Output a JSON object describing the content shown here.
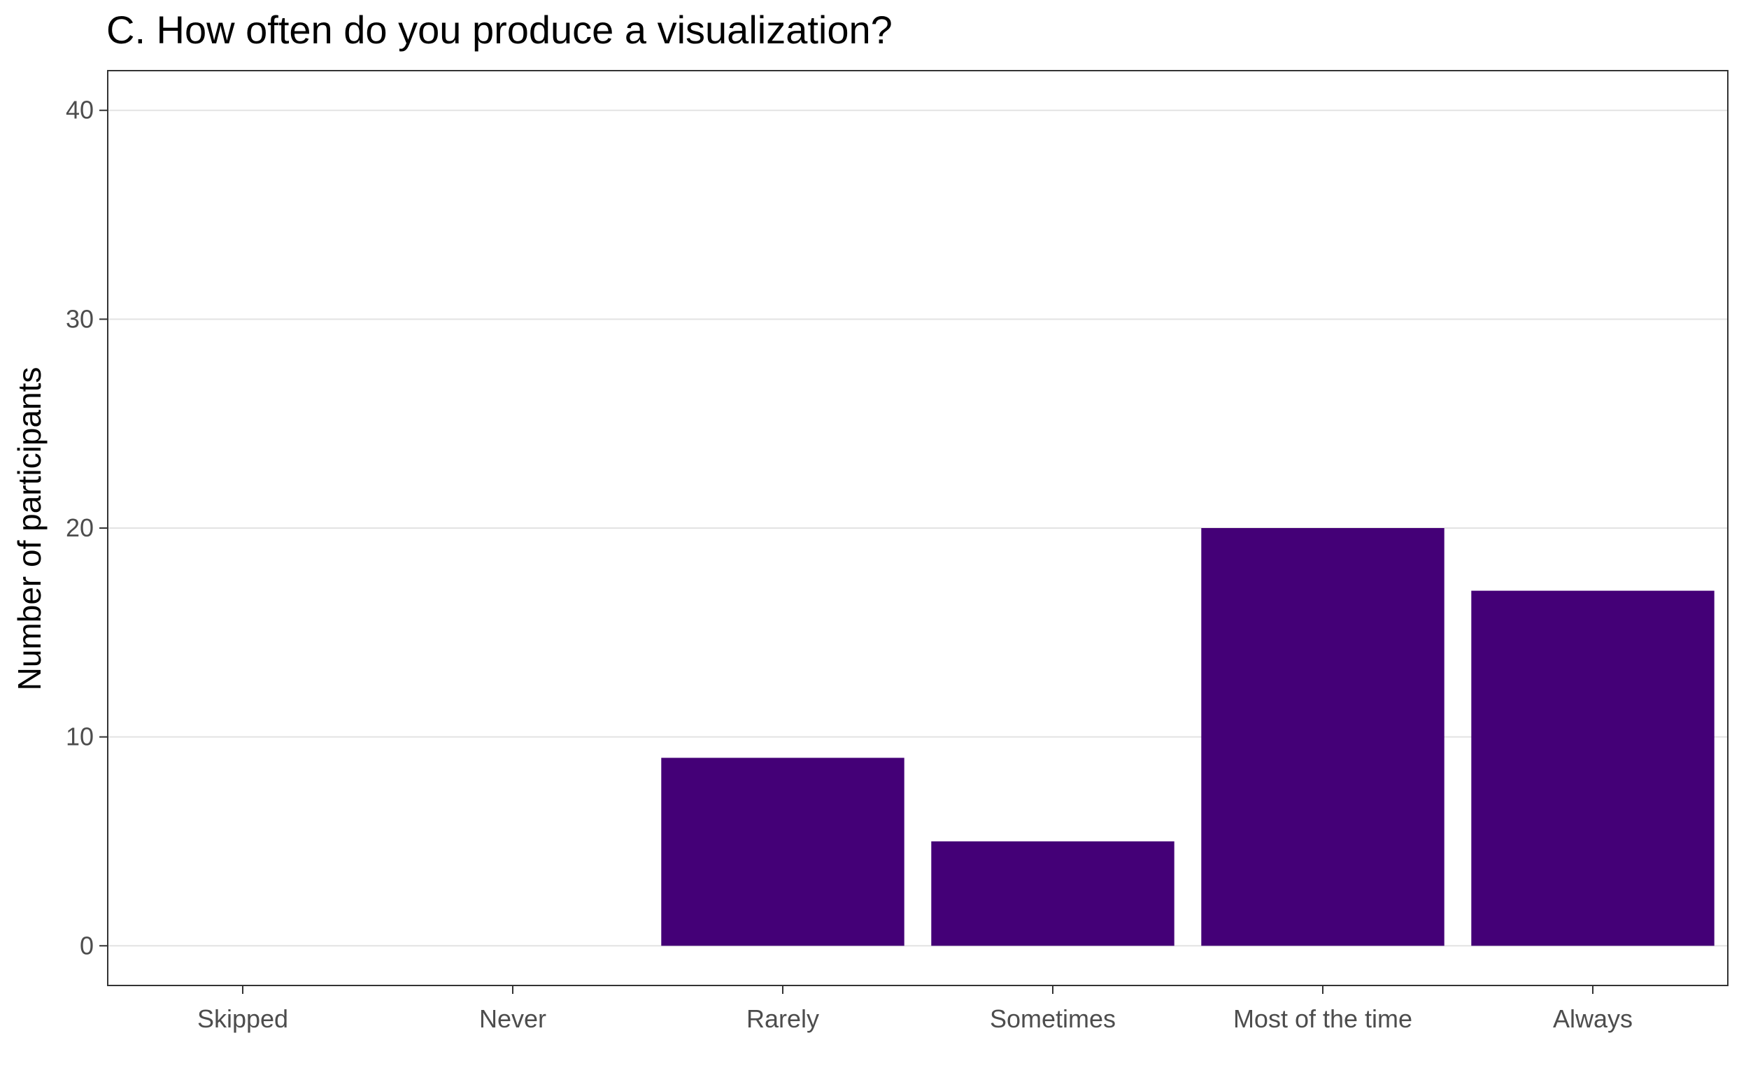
{
  "chart_data": {
    "type": "bar",
    "title": "C. How often do you produce a visualization?",
    "xlabel": "",
    "ylabel": "Number of participants",
    "categories": [
      "Skipped",
      "Never",
      "Rarely",
      "Sometimes",
      "Most of the time",
      "Always"
    ],
    "values": [
      0,
      0,
      9,
      5,
      20,
      17
    ],
    "ylim": [
      -1.9,
      41.9
    ],
    "yticks": [
      0,
      10,
      20,
      30,
      40
    ],
    "grid": "horizontal major",
    "legend": "none",
    "bar_color": "#440077"
  }
}
